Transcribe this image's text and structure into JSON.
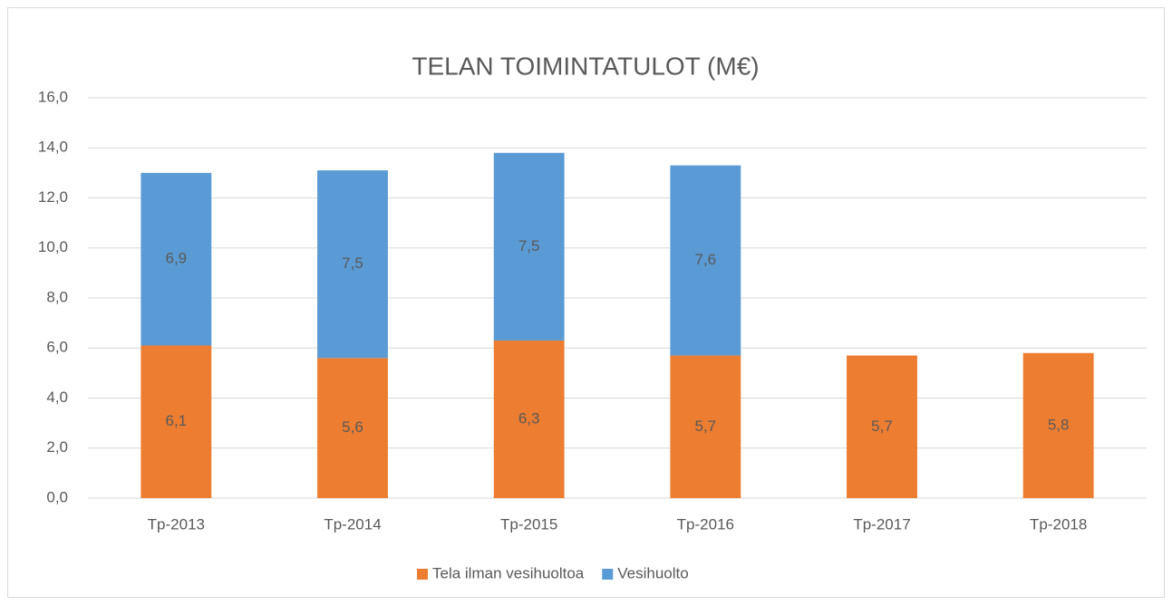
{
  "chart_data": {
    "type": "stacked_bar",
    "title": "TELAN TOIMINTATULOT (M€)",
    "categories": [
      "Tp-2013",
      "Tp-2014",
      "Tp-2015",
      "Tp-2016",
      "Tp-2017",
      "Tp-2018"
    ],
    "series": [
      {
        "name": "Tela ilman vesihuoltoa",
        "color": "#ed7d31",
        "values": [
          6.1,
          5.6,
          6.3,
          5.7,
          5.7,
          5.8
        ],
        "value_labels": [
          "6,1",
          "5,6",
          "6,3",
          "5,7",
          "5,7",
          "5,8"
        ]
      },
      {
        "name": "Vesihuolto",
        "color": "#5b9bd5",
        "values": [
          6.9,
          7.5,
          7.5,
          7.6,
          null,
          null
        ],
        "value_labels": [
          "6,9",
          "7,5",
          "7,5",
          "7,6",
          null,
          null
        ]
      }
    ],
    "ylim": [
      0,
      16
    ],
    "yticks": [
      {
        "value": 0,
        "label": "0,0"
      },
      {
        "value": 2,
        "label": "2,0"
      },
      {
        "value": 4,
        "label": "4,0"
      },
      {
        "value": 6,
        "label": "6,0"
      },
      {
        "value": 8,
        "label": "8,0"
      },
      {
        "value": 10,
        "label": "10,0"
      },
      {
        "value": 12,
        "label": "12,0"
      },
      {
        "value": 14,
        "label": "14,0"
      },
      {
        "value": 16,
        "label": "16,0"
      }
    ],
    "grid": true,
    "legend": "bottom"
  }
}
